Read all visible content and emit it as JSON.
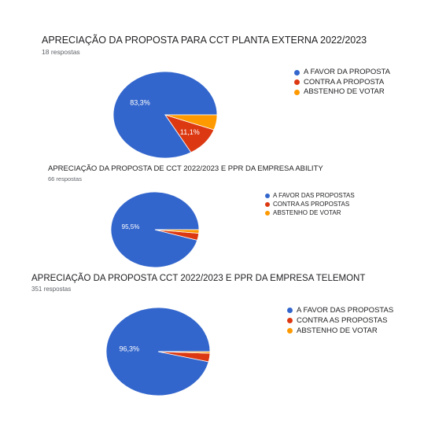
{
  "chart_data": [
    {
      "type": "pie",
      "title": "APRECIAÇÃO DA PROPOSTA PARA CCT PLANTA EXTERNA 2022/2023",
      "subtitle": "18 respostas",
      "series": [
        {
          "name": "A FAVOR DA PROPOSTA",
          "value": 83.3,
          "label": "83,3%",
          "color": "#3366cc"
        },
        {
          "name": "CONTRA A PROPOSTA",
          "value": 11.1,
          "label": "11,1%",
          "color": "#dc3912"
        },
        {
          "name": "ABSTENHO DE VOTAR",
          "value": 5.6,
          "label": "",
          "color": "#ff9900"
        }
      ],
      "legend_position": "right"
    },
    {
      "type": "pie",
      "title": "APRECIAÇÃO DA PROPOSTA DE CCT 2022/2023 E PPR DA EMPRESA ABILITY",
      "subtitle": "66 respostas",
      "series": [
        {
          "name": "A FAVOR DAS PROPOSTAS",
          "value": 95.5,
          "label": "95,5%",
          "color": "#3366cc"
        },
        {
          "name": "CONTRA AS PROPOSTAS",
          "value": 3.0,
          "label": "",
          "color": "#dc3912"
        },
        {
          "name": "ABSTENHO DE VOTAR",
          "value": 1.5,
          "label": "",
          "color": "#ff9900"
        }
      ],
      "legend_position": "right"
    },
    {
      "type": "pie",
      "title": "APRECIAÇÃO DA PROPOSTA CCT 2022/2023 E PPR DA EMPRESA TELEMONT",
      "subtitle": "351 respostas",
      "series": [
        {
          "name": "A FAVOR DAS PROPOSTAS",
          "value": 96.3,
          "label": "96,3%",
          "color": "#3366cc"
        },
        {
          "name": "CONTRA AS PROPOSTAS",
          "value": 3.1,
          "label": "",
          "color": "#dc3912"
        },
        {
          "name": "ABSTENHO DE VOTAR",
          "value": 0.6,
          "label": "",
          "color": "#ff9900"
        }
      ],
      "legend_position": "right"
    }
  ]
}
